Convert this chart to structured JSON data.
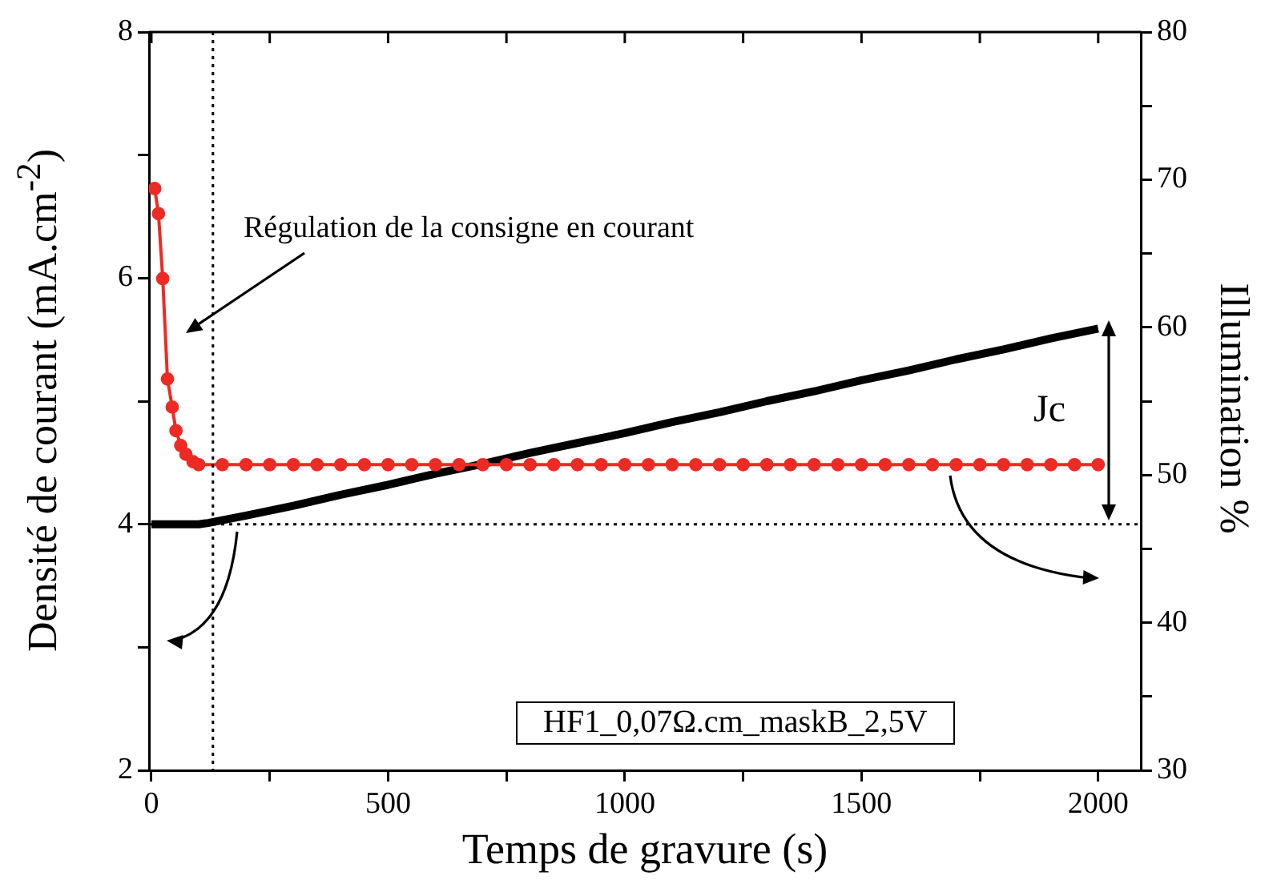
{
  "chart_data": {
    "type": "line",
    "xlabel": "Temps de gravure (s)",
    "ylabel": "Densité de courant  (mA.cm$^{-2}$)",
    "y2label": "Illumination %",
    "xlim": [
      -5,
      2090
    ],
    "xticks": [
      0,
      {
        "value": 250,
        "label": null
      },
      500,
      {
        "value": 750,
        "label": null
      },
      1000,
      {
        "value": 1250,
        "label": null
      },
      1500,
      {
        "value": 1750,
        "label": null
      },
      2000
    ],
    "ylim": [
      2,
      8
    ],
    "yticks": [
      2,
      {
        "value": 3,
        "label": null
      },
      4,
      {
        "value": 5,
        "label": null
      },
      6,
      {
        "value": 7,
        "label": null
      },
      8
    ],
    "y2lim": [
      30,
      80
    ],
    "y2ticks": [
      30,
      {
        "value": 35,
        "label": null
      },
      40,
      {
        "value": 45,
        "label": null
      },
      50,
      {
        "value": 55,
        "label": null
      },
      60,
      {
        "value": 65,
        "label": null
      },
      70,
      {
        "value": 75,
        "label": null
      },
      80
    ],
    "grid": false,
    "legend": false,
    "series": [
      {
        "color": "#000000",
        "marker": "none",
        "x": [
          0,
          50,
          100,
          120,
          200,
          300,
          400,
          500,
          600,
          700,
          800,
          900,
          1000,
          1100,
          1200,
          1300,
          1400,
          1500,
          1600,
          1700,
          1800,
          1900,
          2000
        ],
        "values": [
          4.0,
          4.0,
          4.0,
          4.01,
          4.07,
          4.15,
          4.24,
          4.32,
          4.41,
          4.49,
          4.58,
          4.66,
          4.74,
          4.83,
          4.91,
          5.0,
          5.08,
          5.17,
          5.25,
          5.34,
          5.42,
          5.51,
          5.59
        ]
      },
      {
        "color": "#ee2a24",
        "marker": "circle",
        "axis": "y2",
        "x": [
          7,
          15,
          24,
          34,
          44,
          52,
          62,
          73,
          88,
          100,
          150,
          200,
          250,
          300,
          350,
          400,
          450,
          500,
          550,
          600,
          650,
          700,
          750,
          800,
          850,
          900,
          950,
          1000,
          1050,
          1100,
          1150,
          1200,
          1250,
          1300,
          1350,
          1400,
          1450,
          1500,
          1550,
          1600,
          1650,
          1700,
          1750,
          1800,
          1850,
          1900,
          1950,
          2000
        ],
        "values": [
          69.4,
          67.7,
          63.3,
          56.5,
          54.6,
          53.0,
          52.0,
          51.4,
          50.9,
          50.7,
          50.7,
          50.7,
          50.7,
          50.7,
          50.7,
          50.7,
          50.7,
          50.7,
          50.7,
          50.7,
          50.7,
          50.7,
          50.7,
          50.7,
          50.7,
          50.7,
          50.7,
          50.7,
          50.7,
          50.7,
          50.7,
          50.7,
          50.7,
          50.7,
          50.7,
          50.7,
          50.7,
          50.7,
          50.7,
          50.7,
          50.7,
          50.7,
          50.7,
          50.7,
          50.7,
          50.7,
          50.7,
          50.7
        ]
      }
    ],
    "ref_lines": [
      {
        "axis": "x",
        "value": 130,
        "line_style": "dotted",
        "color": "#000000"
      },
      {
        "axis": "y",
        "value": 4.0,
        "line_style": "dotted",
        "color": "#000000"
      }
    ],
    "annotations": [
      "Régulation de la consigne en courant",
      "Jc",
      "HF1_0,07Ω.cm_maskB_2,5V"
    ]
  }
}
